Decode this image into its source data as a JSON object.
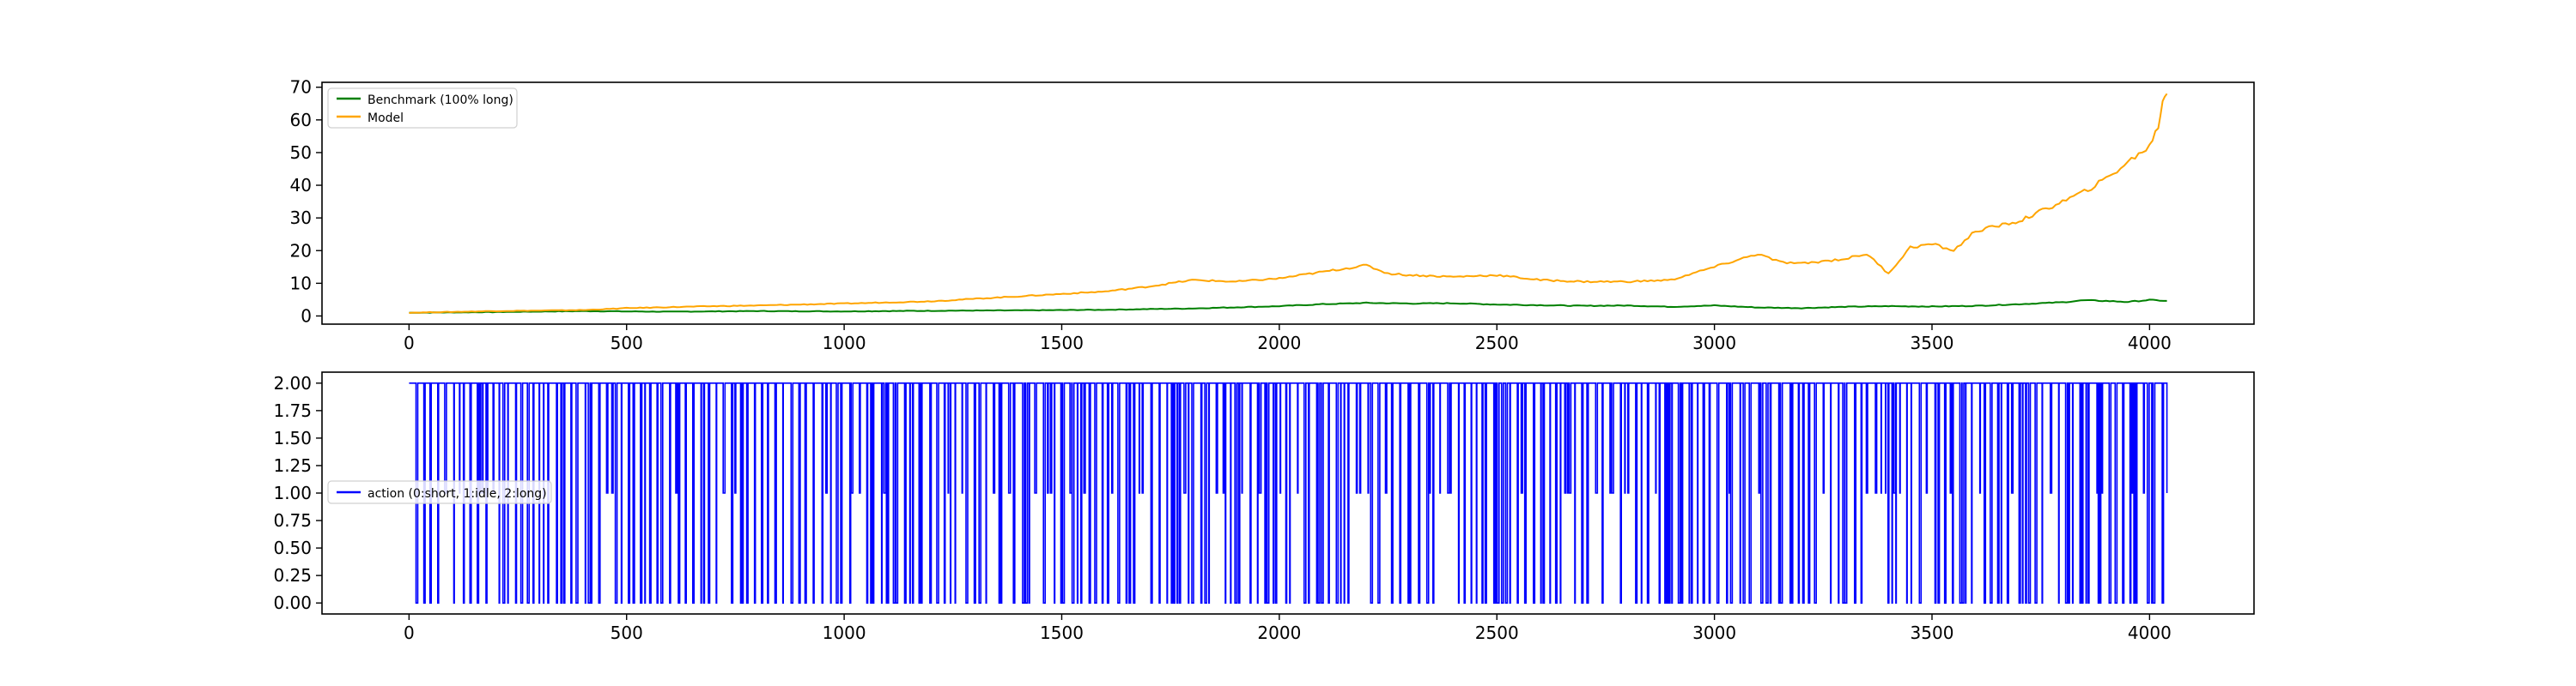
{
  "chart_data": [
    {
      "type": "line",
      "xlim": [
        -200,
        4240
      ],
      "ylim": [
        -2.5,
        71.5
      ],
      "x_ticks": [
        0,
        500,
        1000,
        1500,
        2000,
        2500,
        3000,
        3500,
        4000
      ],
      "y_ticks": [
        0,
        10,
        20,
        30,
        40,
        50,
        60,
        70
      ],
      "legend_position": "upper-left",
      "series": [
        {
          "name": "Benchmark (100% long)",
          "color": "#008000",
          "x": [
            0,
            200,
            400,
            600,
            800,
            1000,
            1200,
            1400,
            1600,
            1800,
            2000,
            2100,
            2200,
            2300,
            2400,
            2500,
            2600,
            2700,
            2800,
            2900,
            3000,
            3100,
            3200,
            3300,
            3400,
            3500,
            3600,
            3700,
            3800,
            3850,
            3900,
            3950,
            4000,
            4040
          ],
          "y": [
            1.0,
            1.2,
            1.5,
            1.3,
            1.5,
            1.4,
            1.6,
            1.7,
            1.9,
            2.3,
            3.0,
            3.6,
            4.0,
            3.8,
            3.9,
            3.5,
            3.3,
            3.1,
            3.2,
            2.8,
            3.2,
            2.6,
            2.4,
            2.8,
            3.0,
            2.9,
            3.1,
            3.6,
            4.2,
            4.8,
            4.6,
            4.3,
            4.9,
            4.6
          ]
        },
        {
          "name": "Model",
          "color": "#ffa500",
          "x": [
            0,
            200,
            400,
            500,
            600,
            700,
            800,
            900,
            1000,
            1200,
            1400,
            1600,
            1700,
            1800,
            1900,
            2000,
            2100,
            2200,
            2250,
            2300,
            2400,
            2500,
            2600,
            2700,
            2800,
            2900,
            2950,
            3000,
            3050,
            3100,
            3150,
            3200,
            3300,
            3350,
            3400,
            3450,
            3500,
            3550,
            3600,
            3700,
            3800,
            3850,
            3900,
            3950,
            4000,
            4020,
            4030,
            4040
          ],
          "y": [
            1.0,
            1.5,
            1.8,
            2.4,
            2.7,
            3.0,
            3.2,
            3.5,
            3.8,
            4.5,
            6.0,
            7.5,
            9.0,
            11.0,
            10.5,
            11.5,
            13.5,
            15.5,
            13.0,
            12.5,
            12.0,
            12.5,
            11.0,
            10.5,
            10.5,
            11.0,
            13.0,
            15.0,
            17.0,
            19.0,
            16.5,
            16.0,
            17.5,
            19.0,
            13.0,
            21.0,
            22.0,
            20.0,
            26.0,
            29.0,
            35.0,
            38.0,
            42.0,
            47.0,
            52.0,
            58.0,
            66.0,
            68.0
          ]
        }
      ]
    },
    {
      "type": "line",
      "xlim": [
        -200,
        4240
      ],
      "ylim": [
        -0.1,
        2.1
      ],
      "x_ticks": [
        0,
        500,
        1000,
        1500,
        2000,
        2500,
        3000,
        3500,
        4000
      ],
      "y_ticks": [
        0.0,
        0.25,
        0.5,
        0.75,
        1.0,
        1.25,
        1.5,
        1.75,
        2.0
      ],
      "legend_position": "center-left",
      "series": [
        {
          "name": "action (0:short, 1:idle, 2:long)",
          "color": "#0000ff",
          "x_range": [
            0,
            4040
          ],
          "levels": [
            0,
            1,
            2
          ]
        }
      ]
    }
  ],
  "labels": {
    "x_ticks": [
      "0",
      "500",
      "1000",
      "1500",
      "2000",
      "2500",
      "3000",
      "3500",
      "4000"
    ],
    "top_y_ticks": [
      "0",
      "10",
      "20",
      "30",
      "40",
      "50",
      "60",
      "70"
    ],
    "bottom_y_ticks": [
      "0.00",
      "0.25",
      "0.50",
      "0.75",
      "1.00",
      "1.25",
      "1.50",
      "1.75",
      "2.00"
    ],
    "legend_top": [
      "Benchmark (100% long)",
      "Model"
    ],
    "legend_bottom": [
      "action (0:short, 1:idle, 2:long)"
    ]
  }
}
